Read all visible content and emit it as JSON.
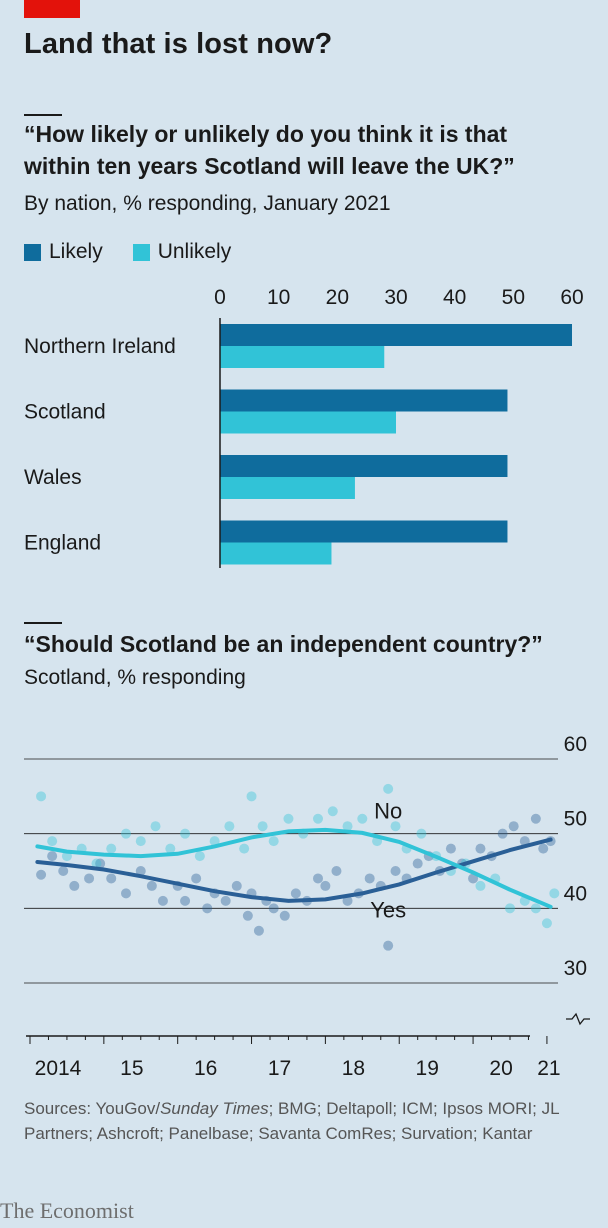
{
  "header": {
    "title": "Land that is lost now?"
  },
  "chart_data": [
    {
      "type": "bar",
      "title": "“How likely or unlikely do you think it is that within ten years Scotland will leave the UK?”",
      "title_lines": [
        "“How likely or unlikely do you think it is that",
        "within ten years Scotland will leave the UK?”"
      ],
      "subtitle": "By nation, % responding, January 2021",
      "orientation": "horizontal",
      "categories": [
        "Northern Ireland",
        "Scotland",
        "Wales",
        "England"
      ],
      "series": [
        {
          "name": "Likely",
          "color": "#0f6c9d",
          "values": [
            60,
            49,
            49,
            49
          ]
        },
        {
          "name": "Unlikely",
          "color": "#31c3d7",
          "values": [
            28,
            30,
            23,
            19
          ]
        }
      ],
      "xlim": [
        0,
        60
      ],
      "xticks": [
        0,
        10,
        20,
        30,
        40,
        50,
        60
      ],
      "legend": "top-left",
      "grid": false
    },
    {
      "type": "scatter",
      "title": "“Should Scotland be an independent country?”",
      "subtitle": "Scotland, % responding",
      "ylim": [
        30,
        60
      ],
      "yticks": [
        30,
        40,
        50,
        60
      ],
      "xlim": [
        2014.0,
        2021.15
      ],
      "xticks": [
        {
          "value": 2014,
          "label": "2014"
        },
        {
          "value": 2015,
          "label": "15"
        },
        {
          "value": 2016,
          "label": "16"
        },
        {
          "value": 2017,
          "label": "17"
        },
        {
          "value": 2018,
          "label": "18"
        },
        {
          "value": 2019,
          "label": "19"
        },
        {
          "value": 2020,
          "label": "20"
        },
        {
          "value": 2021,
          "label": "21"
        }
      ],
      "axis_break": true,
      "grid": true,
      "series": [
        {
          "name": "Yes",
          "color": "#2a5f96",
          "trend": [
            [
              2014.1,
              46.2
            ],
            [
              2014.5,
              45.8
            ],
            [
              2015.0,
              45.2
            ],
            [
              2015.5,
              44.3
            ],
            [
              2016.0,
              43.3
            ],
            [
              2016.5,
              42.3
            ],
            [
              2017.0,
              41.5
            ],
            [
              2017.5,
              41.0
            ],
            [
              2018.0,
              41.2
            ],
            [
              2018.5,
              42.0
            ],
            [
              2019.0,
              43.2
            ],
            [
              2019.5,
              44.8
            ],
            [
              2020.0,
              46.3
            ],
            [
              2020.5,
              47.8
            ],
            [
              2021.05,
              49.2
            ]
          ],
          "points": [
            [
              2014.15,
              44.5
            ],
            [
              2014.3,
              47
            ],
            [
              2014.45,
              45
            ],
            [
              2014.6,
              43
            ],
            [
              2014.8,
              44
            ],
            [
              2014.95,
              46
            ],
            [
              2015.1,
              44
            ],
            [
              2015.3,
              42
            ],
            [
              2015.5,
              45
            ],
            [
              2015.65,
              43
            ],
            [
              2015.8,
              41
            ],
            [
              2016.0,
              43
            ],
            [
              2016.1,
              41
            ],
            [
              2016.25,
              44
            ],
            [
              2016.4,
              40
            ],
            [
              2016.5,
              42
            ],
            [
              2016.65,
              41
            ],
            [
              2016.8,
              43
            ],
            [
              2016.95,
              39
            ],
            [
              2017.0,
              42
            ],
            [
              2017.1,
              37
            ],
            [
              2017.2,
              41
            ],
            [
              2017.3,
              40
            ],
            [
              2017.45,
              39
            ],
            [
              2017.6,
              42
            ],
            [
              2017.75,
              41
            ],
            [
              2017.9,
              44
            ],
            [
              2018.0,
              43
            ],
            [
              2018.15,
              45
            ],
            [
              2018.3,
              41
            ],
            [
              2018.45,
              42
            ],
            [
              2018.6,
              44
            ],
            [
              2018.75,
              43
            ],
            [
              2018.85,
              35
            ],
            [
              2018.95,
              45
            ],
            [
              2019.1,
              44
            ],
            [
              2019.25,
              46
            ],
            [
              2019.4,
              47
            ],
            [
              2019.55,
              45
            ],
            [
              2019.7,
              48
            ],
            [
              2019.85,
              46
            ],
            [
              2020.0,
              44
            ],
            [
              2020.1,
              48
            ],
            [
              2020.25,
              47
            ],
            [
              2020.4,
              50
            ],
            [
              2020.55,
              51
            ],
            [
              2020.7,
              49
            ],
            [
              2020.85,
              52
            ],
            [
              2020.95,
              48
            ],
            [
              2021.05,
              49
            ]
          ]
        },
        {
          "name": "No",
          "color": "#31c3d7",
          "trend": [
            [
              2014.1,
              48.3
            ],
            [
              2014.5,
              47.6
            ],
            [
              2015.0,
              47.2
            ],
            [
              2015.5,
              47.0
            ],
            [
              2016.0,
              47.3
            ],
            [
              2016.5,
              48.3
            ],
            [
              2017.0,
              49.5
            ],
            [
              2017.5,
              50.3
            ],
            [
              2018.0,
              50.5
            ],
            [
              2018.5,
              50.1
            ],
            [
              2019.0,
              48.9
            ],
            [
              2019.5,
              46.9
            ],
            [
              2020.0,
              44.8
            ],
            [
              2020.5,
              42.5
            ],
            [
              2021.05,
              40.2
            ]
          ],
          "points": [
            [
              2014.15,
              55
            ],
            [
              2014.3,
              49
            ],
            [
              2014.5,
              47
            ],
            [
              2014.7,
              48
            ],
            [
              2014.9,
              46
            ],
            [
              2015.1,
              48
            ],
            [
              2015.3,
              50
            ],
            [
              2015.5,
              49
            ],
            [
              2015.7,
              51
            ],
            [
              2015.9,
              48
            ],
            [
              2016.1,
              50
            ],
            [
              2016.3,
              47
            ],
            [
              2016.5,
              49
            ],
            [
              2016.7,
              51
            ],
            [
              2016.9,
              48
            ],
            [
              2017.0,
              55
            ],
            [
              2017.15,
              51
            ],
            [
              2017.3,
              49
            ],
            [
              2017.5,
              52
            ],
            [
              2017.7,
              50
            ],
            [
              2017.9,
              52
            ],
            [
              2018.1,
              53
            ],
            [
              2018.3,
              51
            ],
            [
              2018.5,
              52
            ],
            [
              2018.7,
              49
            ],
            [
              2018.85,
              56
            ],
            [
              2018.95,
              51
            ],
            [
              2019.1,
              48
            ],
            [
              2019.3,
              50
            ],
            [
              2019.5,
              47
            ],
            [
              2019.7,
              45
            ],
            [
              2019.9,
              46
            ],
            [
              2020.1,
              43
            ],
            [
              2020.3,
              44
            ],
            [
              2020.5,
              40
            ],
            [
              2020.7,
              41
            ],
            [
              2020.85,
              40
            ],
            [
              2021.0,
              38
            ],
            [
              2021.1,
              42
            ]
          ]
        }
      ],
      "labels": [
        {
          "text": "No",
          "x": 2018.85,
          "y": 52
        },
        {
          "text": "Yes",
          "x": 2018.85,
          "y": 38.8
        }
      ],
      "ylabels_right": true
    }
  ],
  "sources": {
    "prefix": "Sources: YouGov/",
    "italic": "Sunday Times",
    "rest": "; BMG; Deltapoll; ICM; Ipsos MORI; JL Partners; Ashcroft; Panelbase; Savanta ComRes; Survation; Kantar"
  },
  "brand": "The Economist"
}
